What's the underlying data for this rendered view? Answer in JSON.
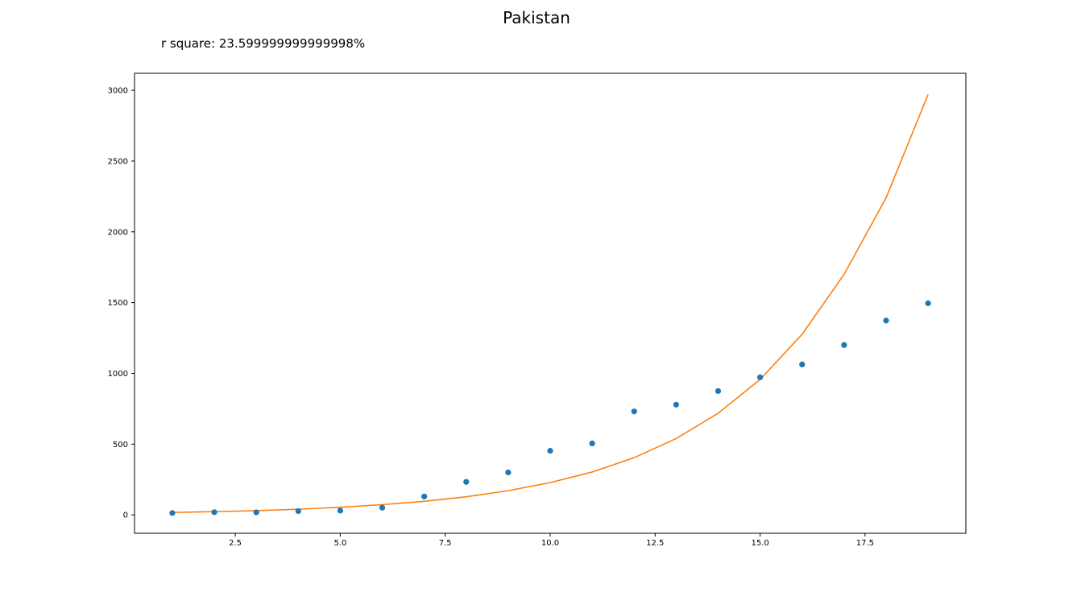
{
  "chart_data": {
    "type": "scatter",
    "title": "Pakistan",
    "annotation": "r square: 23.599999999999998%",
    "xlim": [
      0.1,
      19.9
    ],
    "ylim": [
      -130,
      3120
    ],
    "xticks": [
      2.5,
      5.0,
      7.5,
      10.0,
      12.5,
      15.0,
      17.5
    ],
    "xtick_labels": [
      "2.5",
      "5.0",
      "7.5",
      "10.0",
      "12.5",
      "15.0",
      "17.5"
    ],
    "yticks": [
      0,
      500,
      1000,
      1500,
      2000,
      2500,
      3000
    ],
    "ytick_labels": [
      "0",
      "500",
      "1000",
      "1500",
      "2000",
      "2500",
      "3000"
    ],
    "grid": false,
    "series": [
      {
        "kind": "scatter",
        "color": "#1f77b4",
        "x": [
          1,
          2,
          3,
          4,
          5,
          6,
          7,
          8,
          9,
          10,
          11,
          12,
          13,
          14,
          15,
          16,
          17,
          18,
          19
        ],
        "y": [
          13,
          19,
          18,
          27,
          30,
          51,
          130,
          233,
          300,
          453,
          505,
          731,
          779,
          875,
          972,
          1063,
          1200,
          1373,
          1495
        ]
      },
      {
        "kind": "line",
        "color": "#ff7f0e",
        "x": [
          1,
          2,
          3,
          4,
          5,
          6,
          7,
          8,
          9,
          10,
          11,
          12,
          13,
          14,
          15,
          16,
          17,
          18,
          19
        ],
        "y": [
          17,
          23,
          30,
          40,
          54,
          72,
          96,
          128,
          171,
          228,
          303,
          404,
          539,
          718,
          957,
          1276,
          1700,
          2240,
          2970
        ]
      }
    ]
  }
}
